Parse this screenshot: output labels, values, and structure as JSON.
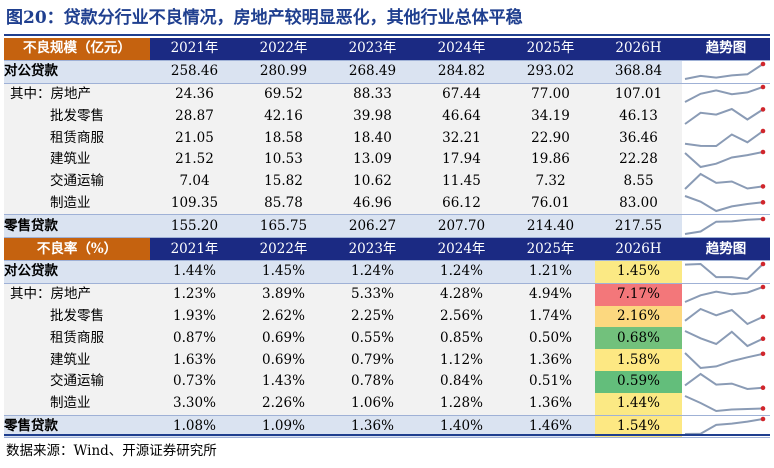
{
  "title": "图20：贷款分行业不良情况，房地产较明显恶化，其他行业总体平稳",
  "source": "数据来源：Wind、开源证券研究所",
  "years": [
    "2021年",
    "2022年",
    "2023年",
    "2024年",
    "2025年",
    "2026H"
  ],
  "trend_label": "趋势图",
  "sections": [
    {
      "header": "不良规模（亿元）",
      "rows": [
        {
          "label": "对公贷款",
          "kind": "main",
          "values": [
            "258.46",
            "280.99",
            "268.49",
            "284.82",
            "293.02",
            "368.84"
          ],
          "series": [
            258.46,
            280.99,
            268.49,
            284.82,
            293.02,
            368.84
          ]
        },
        {
          "label": "其中：房地产",
          "kind": "qz",
          "values": [
            "24.36",
            "69.52",
            "88.33",
            "67.44",
            "77.00",
            "107.01"
          ],
          "series": [
            24.36,
            69.52,
            88.33,
            67.44,
            77.0,
            107.01
          ]
        },
        {
          "label": "批发零售",
          "kind": "sub",
          "values": [
            "28.87",
            "42.16",
            "39.98",
            "46.64",
            "34.19",
            "46.13"
          ],
          "series": [
            28.87,
            42.16,
            39.98,
            46.64,
            34.19,
            46.13
          ]
        },
        {
          "label": "租赁商服",
          "kind": "sub",
          "values": [
            "21.05",
            "18.58",
            "18.40",
            "32.21",
            "22.90",
            "36.46"
          ],
          "series": [
            21.05,
            18.58,
            18.4,
            32.21,
            22.9,
            36.46
          ]
        },
        {
          "label": "建筑业",
          "kind": "sub",
          "values": [
            "21.52",
            "10.53",
            "13.09",
            "17.94",
            "19.86",
            "22.28"
          ],
          "series": [
            21.52,
            10.53,
            13.09,
            17.94,
            19.86,
            22.28
          ]
        },
        {
          "label": "交通运输",
          "kind": "sub",
          "values": [
            "7.04",
            "15.82",
            "10.62",
            "11.45",
            "7.32",
            "8.55"
          ],
          "series": [
            7.04,
            15.82,
            10.62,
            11.45,
            7.32,
            8.55
          ]
        },
        {
          "label": "制造业",
          "kind": "sub",
          "values": [
            "109.35",
            "85.78",
            "46.96",
            "66.12",
            "76.01",
            "83.00"
          ],
          "series": [
            109.35,
            85.78,
            46.96,
            66.12,
            76.01,
            83.0
          ]
        },
        {
          "label": "零售贷款",
          "kind": "main",
          "values": [
            "155.20",
            "165.75",
            "206.27",
            "207.70",
            "214.40",
            "217.55"
          ],
          "series": [
            155.2,
            165.75,
            206.27,
            207.7,
            214.4,
            217.55
          ]
        }
      ]
    },
    {
      "header": "不良率（%）",
      "rows": [
        {
          "label": "对公贷款",
          "kind": "main",
          "values": [
            "1.44%",
            "1.45%",
            "1.24%",
            "1.24%",
            "1.21%",
            "1.45%"
          ],
          "series": [
            1.44,
            1.45,
            1.24,
            1.24,
            1.21,
            1.45
          ],
          "hl": "#fbe984"
        },
        {
          "label": "其中：房地产",
          "kind": "qz",
          "values": [
            "1.23%",
            "3.89%",
            "5.33%",
            "4.28%",
            "4.94%",
            "7.17%"
          ],
          "series": [
            1.23,
            3.89,
            5.33,
            4.28,
            4.94,
            7.17
          ],
          "hl": "#f3777a"
        },
        {
          "label": "批发零售",
          "kind": "sub",
          "values": [
            "1.93%",
            "2.62%",
            "2.25%",
            "2.56%",
            "1.74%",
            "2.16%"
          ],
          "series": [
            1.93,
            2.62,
            2.25,
            2.56,
            1.74,
            2.16
          ],
          "hl": "#fcd87f"
        },
        {
          "label": "租赁商服",
          "kind": "sub",
          "values": [
            "0.87%",
            "0.69%",
            "0.55%",
            "0.85%",
            "0.50%",
            "0.68%"
          ],
          "series": [
            0.87,
            0.69,
            0.55,
            0.85,
            0.5,
            0.68
          ],
          "hl": "#72c17c"
        },
        {
          "label": "建筑业",
          "kind": "sub",
          "values": [
            "1.63%",
            "0.69%",
            "0.79%",
            "1.12%",
            "1.36%",
            "1.58%"
          ],
          "series": [
            1.63,
            0.69,
            0.79,
            1.12,
            1.36,
            1.58
          ],
          "hl": "#fde883"
        },
        {
          "label": "交通运输",
          "kind": "sub",
          "values": [
            "0.73%",
            "1.43%",
            "0.78%",
            "0.84%",
            "0.51%",
            "0.59%"
          ],
          "series": [
            0.73,
            1.43,
            0.78,
            0.84,
            0.51,
            0.59
          ],
          "hl": "#63be7b"
        },
        {
          "label": "制造业",
          "kind": "sub",
          "values": [
            "3.30%",
            "2.26%",
            "1.06%",
            "1.28%",
            "1.36%",
            "1.44%"
          ],
          "series": [
            3.3,
            2.26,
            1.06,
            1.28,
            1.36,
            1.44
          ],
          "hl": "#fbe984"
        },
        {
          "label": "零售贷款",
          "kind": "main",
          "values": [
            "1.08%",
            "1.09%",
            "1.36%",
            "1.40%",
            "1.46%",
            "1.54%"
          ],
          "series": [
            1.08,
            1.09,
            1.36,
            1.4,
            1.46,
            1.54
          ],
          "hl": "#fde883"
        }
      ]
    }
  ],
  "colors": {
    "header_bg": "#1b2a83",
    "header_label_bg": "#c5620f",
    "main_row_bg": "#dae3f1",
    "sub_row_bg": "#f2f2f2",
    "spark_line": "#8a9bb5",
    "spark_end": "#d0262c",
    "title": "#1f3f8f"
  }
}
